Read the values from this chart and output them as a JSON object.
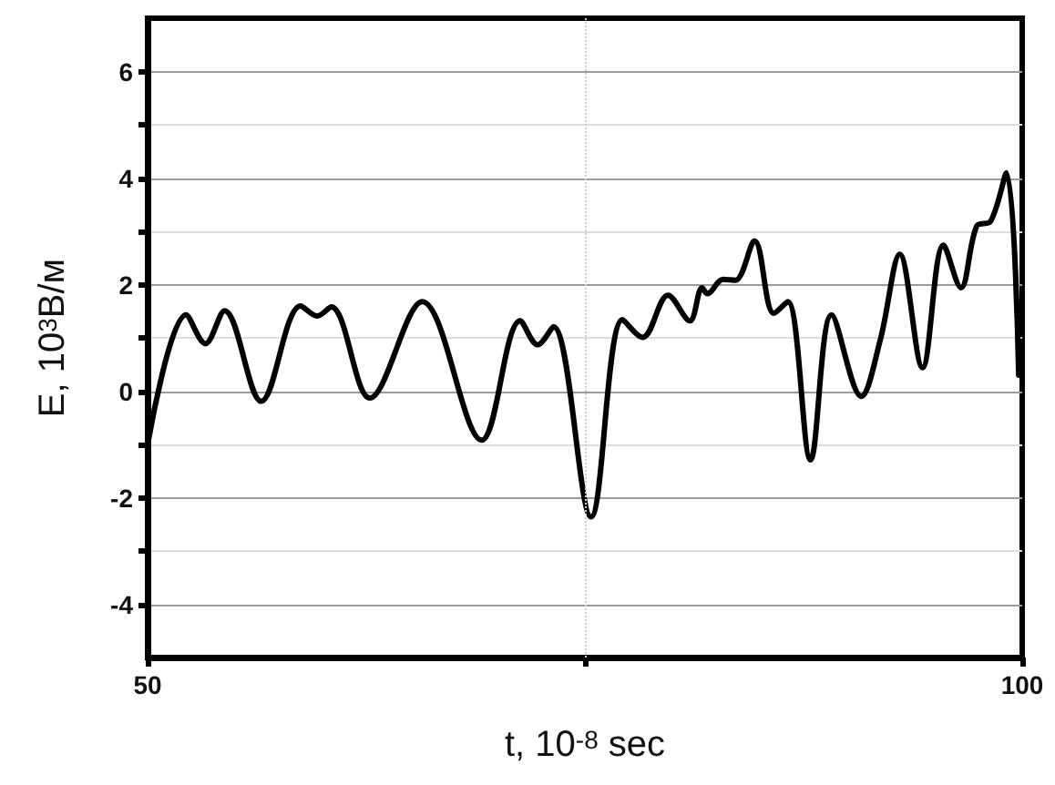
{
  "chart_data": {
    "type": "line",
    "xlabel": "t, 10$^{-8}$ sec",
    "ylabel": "E, 10$^{3}$В/м",
    "xlim": [
      50,
      100
    ],
    "xticks": [
      50,
      {
        "value": 75,
        "label": null
      },
      100
    ],
    "ylim": [
      -5,
      7
    ],
    "yticks": [
      -4,
      {
        "value": -3,
        "label": null
      },
      -2,
      {
        "value": -1,
        "label": null
      },
      0,
      {
        "value": 1,
        "label": null
      },
      2,
      {
        "value": 3,
        "label": null
      },
      4,
      {
        "value": 5,
        "label": null
      },
      6
    ],
    "grid": "y",
    "ref_lines": [
      {
        "axis": "x",
        "value": 75,
        "color": "#cccccc",
        "line_style": "dotted"
      }
    ],
    "marker": "none",
    "line_style": "solid",
    "series": [
      {
        "color": "#000000",
        "x": [
          50.07,
          52.2,
          53.3,
          54.4,
          56.5,
          58.75,
          59.7,
          60.5,
          62.7,
          65.7,
          69.1,
          71.3,
          72.3,
          73.2,
          75.35,
          77.15,
          78.3,
          79.75,
          81.0,
          81.7,
          82.0,
          82.9,
          83.6,
          84.7,
          85.8,
          86.6,
          87.9,
          89.1,
          90.8,
          91.9,
          93.0,
          94.3,
          95.5,
          96.5,
          97.4,
          98.2,
          99.1,
          99.8
        ],
        "values": [
          -0.89,
          1.43,
          0.89,
          1.51,
          -0.19,
          1.6,
          1.41,
          1.58,
          -0.13,
          1.68,
          -0.92,
          1.32,
          0.87,
          1.21,
          -2.36,
          1.34,
          1.01,
          1.8,
          1.32,
          1.94,
          1.83,
          2.1,
          2.08,
          2.82,
          1.46,
          1.68,
          -1.29,
          1.43,
          -0.1,
          0.98,
          2.57,
          0.44,
          2.74,
          1.94,
          3.1,
          3.19,
          4.1,
          0.3
        ]
      }
    ]
  }
}
